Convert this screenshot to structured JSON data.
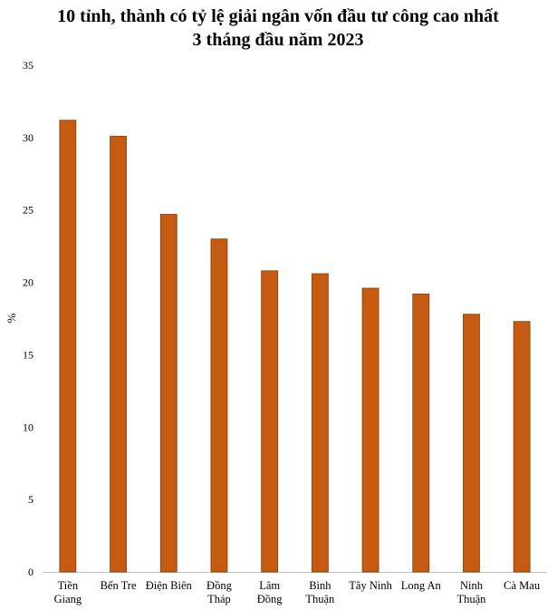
{
  "chart_data": {
    "type": "bar",
    "title_lines": [
      "10 tỉnh, thành có tỷ lệ giải ngân vốn đầu tư công cao nhất",
      "3 tháng đầu năm 2023"
    ],
    "ylabel": "%",
    "ylim": [
      0,
      35
    ],
    "yticks": [
      "0",
      "5",
      "10",
      "15",
      "20",
      "25",
      "30",
      "35"
    ],
    "categories": [
      [
        "Tiền",
        "Giang"
      ],
      [
        "Bến Tre"
      ],
      [
        "Điện Biên"
      ],
      [
        "Đồng",
        "Tháp"
      ],
      [
        "Lâm",
        "Đồng"
      ],
      [
        "Bình",
        "Thuận"
      ],
      [
        "Tây Ninh"
      ],
      [
        "Long An"
      ],
      [
        "Ninh",
        "Thuận"
      ],
      [
        "Cà Mau"
      ]
    ],
    "values": [
      31.2,
      30.1,
      24.7,
      23.0,
      20.8,
      20.6,
      19.6,
      19.2,
      17.8,
      17.3
    ],
    "grid": false,
    "bar_color": "#c55a11",
    "bar_edge_color": "#843c0c"
  }
}
